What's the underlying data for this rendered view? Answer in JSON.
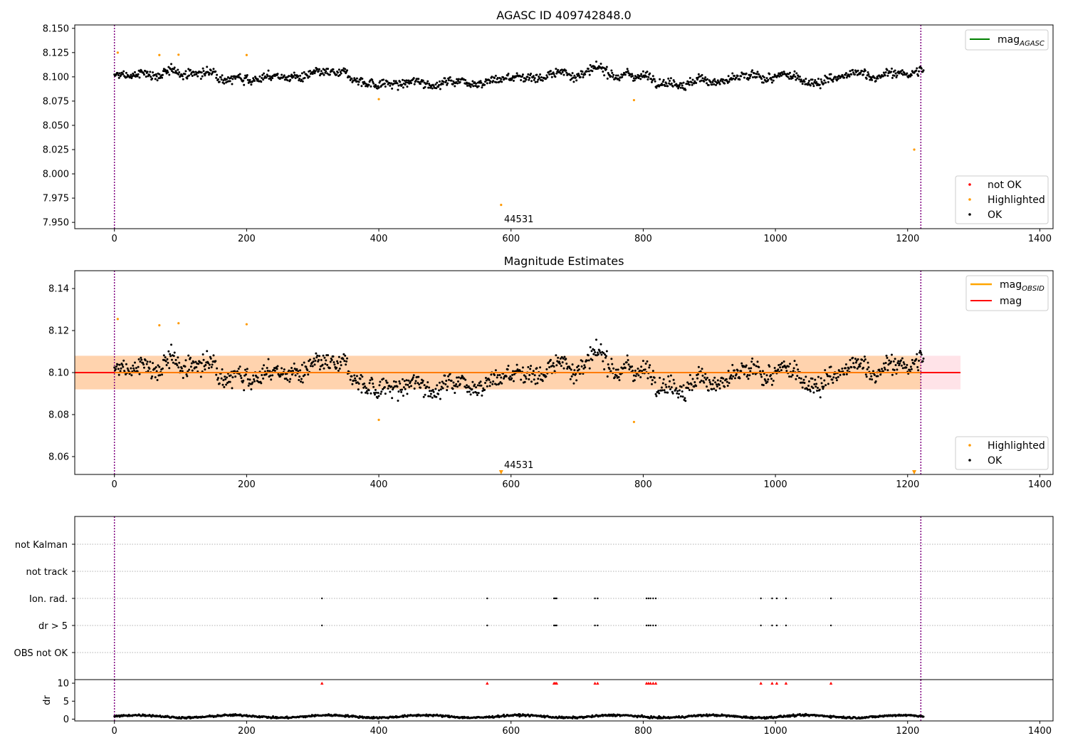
{
  "chart_data": [
    {
      "type": "scatter",
      "title": "AGASC ID 409742848.0",
      "xlim": [
        -60,
        1420
      ],
      "ylim": [
        7.9435,
        8.1535
      ],
      "xticks": [
        0,
        200,
        400,
        600,
        800,
        1000,
        1200,
        1400
      ],
      "yticks": [
        "8.150",
        "8.125",
        "8.100",
        "8.075",
        "8.050",
        "8.025",
        "8.000",
        "7.975",
        "7.950"
      ],
      "vlines": [
        0,
        1220
      ],
      "vline_color": "#800080",
      "annotation": {
        "text": "44531",
        "x": 585,
        "y": 7.948
      },
      "series": [
        {
          "name": "not OK",
          "color": "#ff0000",
          "points": []
        },
        {
          "name": "Highlighted",
          "color": "#ff9900",
          "points": [
            [
              5,
              8.125
            ],
            [
              68,
              8.1225
            ],
            [
              97,
              8.1228
            ],
            [
              200,
              8.1225
            ],
            [
              400,
              8.077
            ],
            [
              585,
              7.968
            ],
            [
              786,
              8.076
            ],
            [
              1210,
              8.025
            ]
          ]
        },
        {
          "name": "OK",
          "color": "#000000",
          "n": 1225,
          "center": 8.1,
          "band": 0.0125
        }
      ],
      "legend_lines": [
        {
          "label": "mag",
          "sub": "AGASC",
          "color": "#008000"
        }
      ],
      "legend_location": [
        "top-right",
        "bottom-right"
      ]
    },
    {
      "type": "scatter",
      "title": "Magnitude Estimates",
      "xlim": [
        -60,
        1420
      ],
      "ylim": [
        8.0515,
        8.1485
      ],
      "xticks": [
        0,
        200,
        400,
        600,
        800,
        1000,
        1200,
        1400
      ],
      "yticks": [
        "8.14",
        "8.12",
        "8.10",
        "8.08",
        "8.06"
      ],
      "vlines": [
        0,
        1220
      ],
      "mag_line": 8.1,
      "mag_band": [
        8.092,
        8.108
      ],
      "annotation": {
        "text": "44531",
        "x": 585,
        "y": 8.0545
      },
      "series": [
        {
          "name": "Highlighted",
          "color": "#ff9900",
          "points": [
            [
              5,
              8.1255
            ],
            [
              68,
              8.1225
            ],
            [
              97,
              8.1235
            ],
            [
              200,
              8.123
            ],
            [
              400,
              8.0775
            ],
            [
              786,
              8.0765
            ]
          ]
        },
        {
          "name": "OK",
          "color": "#000000",
          "n": 1225
        }
      ],
      "lower_markers": [
        [
          585,
          8.0525
        ],
        [
          1210,
          8.0525
        ]
      ],
      "legend_lines": [
        {
          "label": "mag",
          "sub": "OBSID",
          "color": "#ffa500"
        },
        {
          "label": "mag",
          "sub": "",
          "color": "#ff0000"
        }
      ],
      "legend_location": [
        "top-right",
        "bottom-right"
      ]
    },
    {
      "type": "scatter",
      "title": "",
      "xlim": [
        -60,
        1420
      ],
      "categories": [
        "not Kalman",
        "not track",
        "Ion. rad.",
        "dr > 5",
        "OBS not OK"
      ],
      "flag_x": [
        314,
        564,
        665,
        667,
        669,
        727,
        731,
        805,
        808,
        811,
        815,
        819,
        978,
        995,
        1002,
        1016,
        1084
      ],
      "flagged_rows": [
        "Ion. rad.",
        "dr > 5"
      ]
    },
    {
      "type": "scatter",
      "title": "",
      "xlim": [
        -60,
        1420
      ],
      "ylim": [
        -0.5,
        11
      ],
      "ylabel": "dr",
      "xticks": [
        0,
        200,
        400,
        600,
        800,
        1000,
        1200,
        1400
      ],
      "yticks": [
        "10",
        "5",
        "0"
      ],
      "red_markers_y": 10,
      "red_marker_x": [
        314,
        564,
        665,
        667,
        669,
        727,
        731,
        805,
        808,
        811,
        815,
        819,
        978,
        995,
        1002,
        1016,
        1084
      ]
    }
  ]
}
